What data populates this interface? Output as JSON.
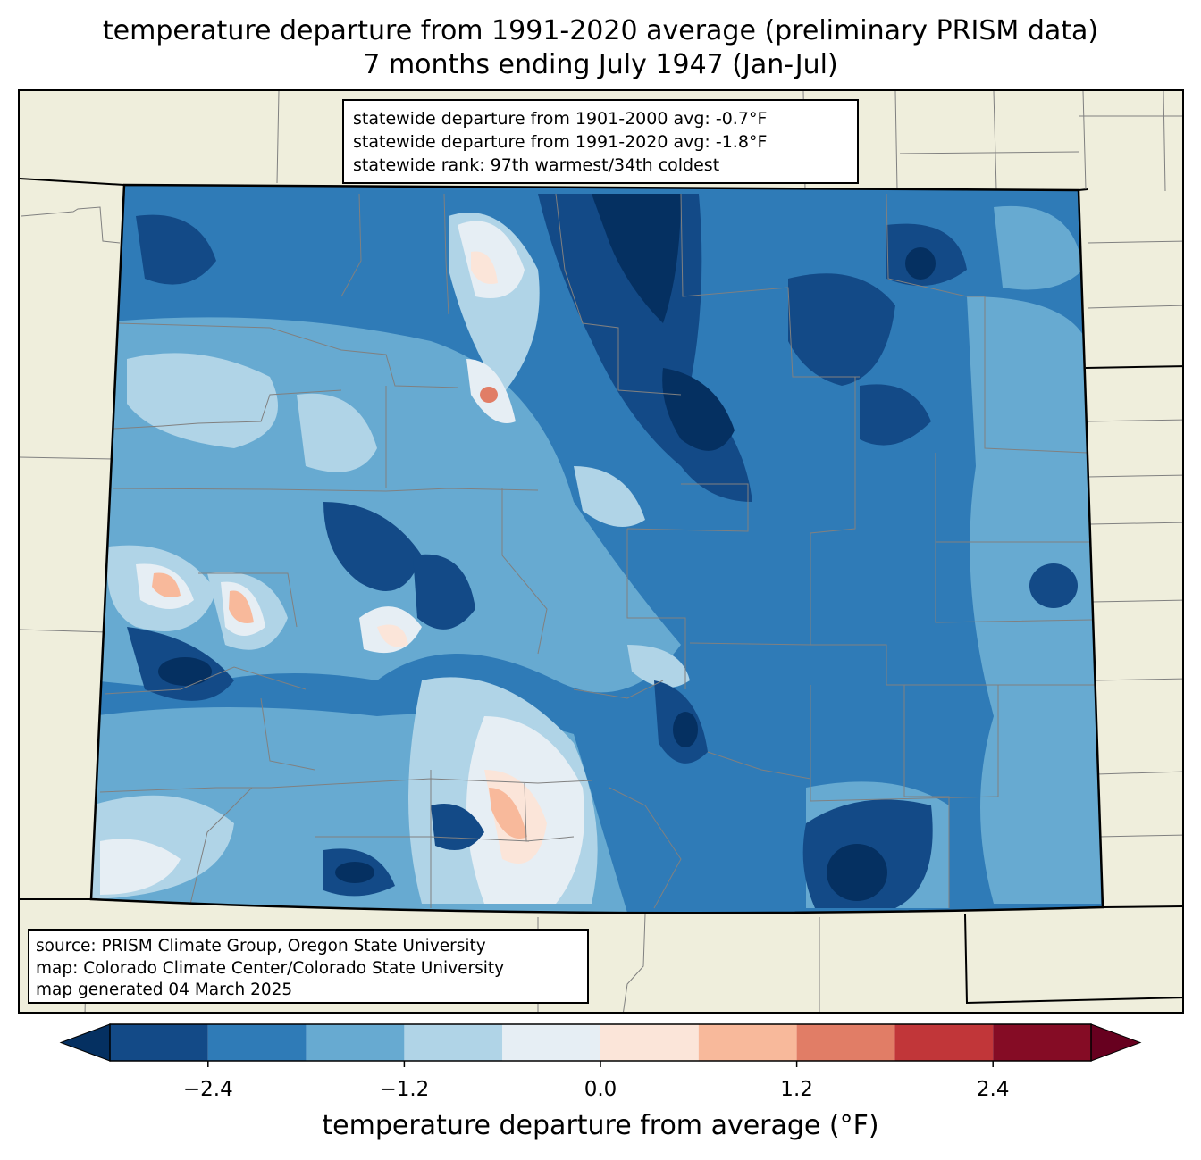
{
  "title": {
    "line1": "temperature departure from 1991-2020 average (preliminary PRISM data)",
    "line2": "7 months ending July 1947 (Jan-Jul)"
  },
  "stats": {
    "line1": "statewide departure from 1901-2000 avg: -0.7°F",
    "line2": "statewide departure from 1991-2020 avg: -1.8°F",
    "line3": "statewide rank: 97th warmest/34th coldest"
  },
  "source": {
    "line1": "source: PRISM Climate Group, Oregon State University",
    "line2": "map: Colorado Climate Center/Colorado State University",
    "line3": "map generated 04 March 2025"
  },
  "colorbar": {
    "label": "temperature departure from average (°F)",
    "ticks": [
      "−2.4",
      "−1.2",
      "0.0",
      "1.2",
      "2.4"
    ],
    "tick_values": [
      -2.4,
      -1.2,
      0.0,
      1.2,
      2.4
    ],
    "range": [
      -3.0,
      3.0
    ],
    "step": 0.6,
    "under_color": "#053061",
    "over_color": "#67001f",
    "colors": [
      "#134a87",
      "#2f7bb7",
      "#67aad1",
      "#b0d4e7",
      "#e6eef4",
      "#fbe5d9",
      "#f8b99b",
      "#e17d66",
      "#c13639",
      "#850c25"
    ]
  },
  "map_colors": {
    "land": "#efeedc",
    "boundary": "#000000",
    "county_line": "#808080"
  }
}
